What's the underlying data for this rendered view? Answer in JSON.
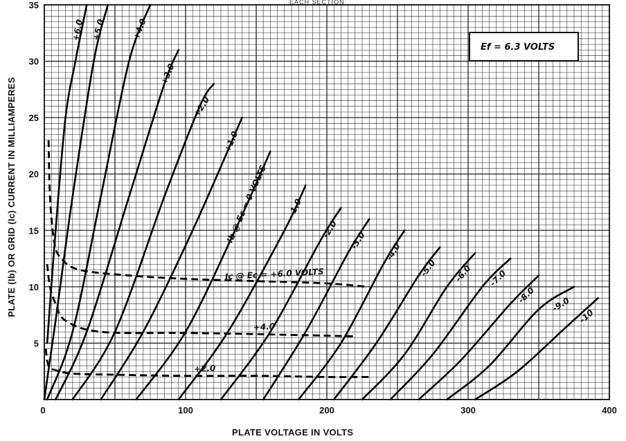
{
  "chart_data": {
    "type": "line",
    "top_caption": "EACH SECTION",
    "xlabel": "PLATE VOLTAGE IN VOLTS",
    "ylabel": "PLATE (Ib) OR GRID (Ic) CURRENT IN MILLIAMPERES",
    "xlim": [
      0,
      400
    ],
    "ylim": [
      0,
      35
    ],
    "x_ticks": [
      0,
      100,
      200,
      300,
      400
    ],
    "y_ticks": [
      5,
      10,
      15,
      20,
      25,
      30,
      35
    ],
    "grid": true,
    "annotation": "Ef = 6.3 VOLTS",
    "plate_series": [
      {
        "label": "+6.0",
        "points": [
          [
            2,
            5
          ],
          [
            8,
            15
          ],
          [
            15,
            25
          ],
          [
            22,
            30
          ],
          [
            30,
            35
          ]
        ]
      },
      {
        "label": "+5.0",
        "points": [
          [
            0,
            0
          ],
          [
            8,
            7
          ],
          [
            20,
            18
          ],
          [
            35,
            30
          ],
          [
            45,
            35
          ]
        ]
      },
      {
        "label": "+4.0",
        "points": [
          [
            2,
            0
          ],
          [
            20,
            6
          ],
          [
            40,
            18
          ],
          [
            60,
            30
          ],
          [
            75,
            35
          ]
        ]
      },
      {
        "label": "+3.0",
        "points": [
          [
            8,
            0
          ],
          [
            30,
            6
          ],
          [
            60,
            18
          ],
          [
            85,
            28
          ],
          [
            95,
            31
          ]
        ]
      },
      {
        "label": "+2.0",
        "points": [
          [
            20,
            0
          ],
          [
            50,
            6
          ],
          [
            85,
            18
          ],
          [
            110,
            26
          ],
          [
            120,
            28
          ]
        ]
      },
      {
        "label": "+1.0",
        "points": [
          [
            40,
            0
          ],
          [
            70,
            6
          ],
          [
            105,
            15
          ],
          [
            140,
            25
          ]
        ]
      },
      {
        "label": "Ib @ Ec = 0 VOLTS",
        "points": [
          [
            65,
            0
          ],
          [
            100,
            6
          ],
          [
            135,
            15
          ],
          [
            160,
            22
          ]
        ]
      },
      {
        "label": "-1.0",
        "points": [
          [
            95,
            0
          ],
          [
            130,
            6
          ],
          [
            170,
            15
          ],
          [
            185,
            19
          ]
        ]
      },
      {
        "label": "-2.0",
        "points": [
          [
            125,
            0
          ],
          [
            160,
            6
          ],
          [
            195,
            14
          ],
          [
            210,
            17
          ]
        ]
      },
      {
        "label": "-3.0",
        "points": [
          [
            155,
            0
          ],
          [
            185,
            6
          ],
          [
            215,
            13
          ],
          [
            230,
            16
          ]
        ]
      },
      {
        "label": "-4.0",
        "points": [
          [
            180,
            0
          ],
          [
            210,
            5
          ],
          [
            240,
            12
          ],
          [
            255,
            15
          ]
        ]
      },
      {
        "label": "-5.0",
        "points": [
          [
            205,
            0
          ],
          [
            235,
            5
          ],
          [
            265,
            11
          ],
          [
            280,
            13.5
          ]
        ]
      },
      {
        "label": "-6.0",
        "points": [
          [
            225,
            0
          ],
          [
            255,
            4
          ],
          [
            285,
            10
          ],
          [
            305,
            13
          ]
        ]
      },
      {
        "label": "-7.0",
        "points": [
          [
            245,
            0
          ],
          [
            275,
            4
          ],
          [
            310,
            10
          ],
          [
            330,
            12.5
          ]
        ]
      },
      {
        "label": "-8.0",
        "points": [
          [
            265,
            0
          ],
          [
            295,
            3.5
          ],
          [
            330,
            8.5
          ],
          [
            350,
            11
          ]
        ]
      },
      {
        "label": "-9.0",
        "points": [
          [
            285,
            0
          ],
          [
            315,
            3
          ],
          [
            350,
            8
          ],
          [
            375,
            10
          ]
        ]
      },
      {
        "label": "-10",
        "points": [
          [
            305,
            0
          ],
          [
            335,
            2.5
          ],
          [
            370,
            6.5
          ],
          [
            392,
            9
          ]
        ]
      }
    ],
    "grid_series": [
      {
        "label": "Ic @ Ec = +6.0 VOLTS",
        "points": [
          [
            3,
            23
          ],
          [
            4,
            18
          ],
          [
            7,
            14
          ],
          [
            12,
            12.5
          ],
          [
            25,
            11.5
          ],
          [
            60,
            11
          ],
          [
            100,
            10.7
          ],
          [
            150,
            10.5
          ],
          [
            200,
            10.3
          ],
          [
            228,
            10
          ]
        ]
      },
      {
        "label": "+4.0",
        "points": [
          [
            2,
            12
          ],
          [
            4,
            10
          ],
          [
            8,
            8.5
          ],
          [
            15,
            7
          ],
          [
            40,
            6
          ],
          [
            100,
            5.9
          ],
          [
            150,
            5.8
          ],
          [
            220,
            5.6
          ]
        ]
      },
      {
        "label": "+2.0",
        "points": [
          [
            1,
            4.5
          ],
          [
            3,
            3
          ],
          [
            8,
            2.6
          ],
          [
            20,
            2.3
          ],
          [
            50,
            2.2
          ],
          [
            100,
            2.1
          ],
          [
            150,
            2.1
          ],
          [
            200,
            2.0
          ],
          [
            230,
            2.0
          ]
        ]
      }
    ]
  },
  "legend_box": {
    "label": "Ef = 6.3 VOLTS"
  }
}
